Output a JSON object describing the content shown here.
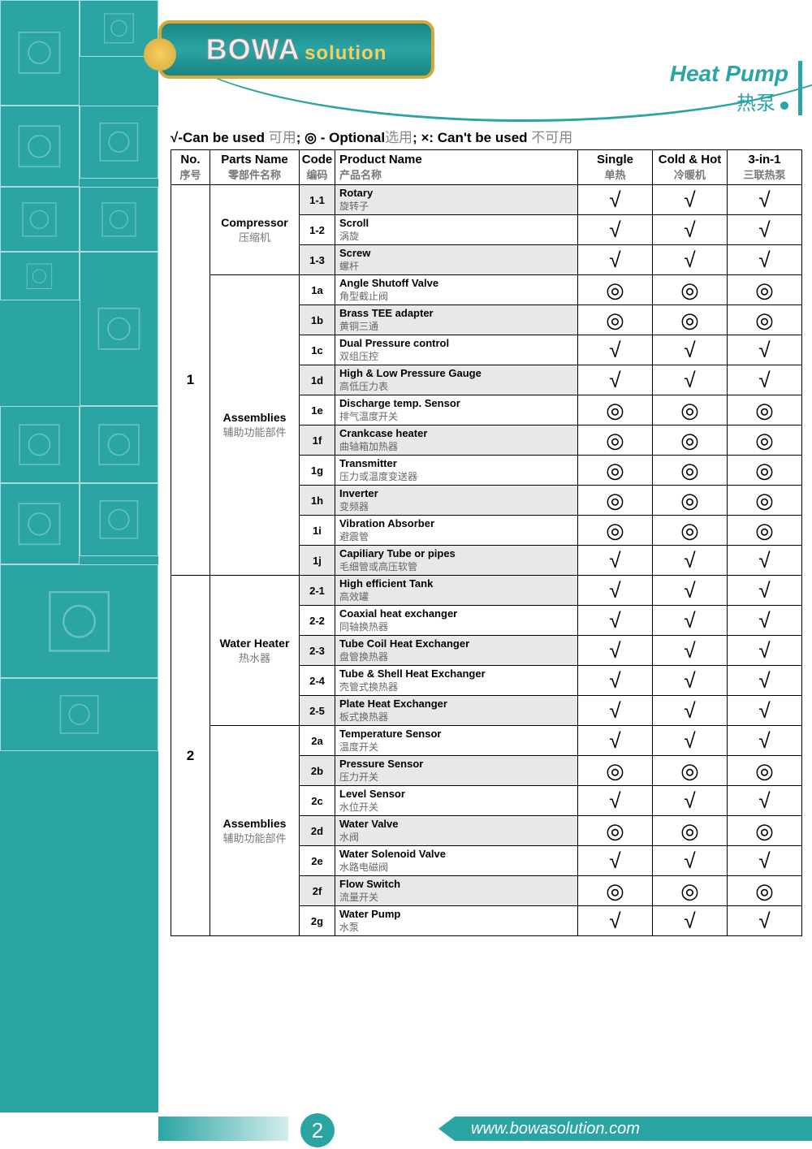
{
  "logo": {
    "main": "BOWA",
    "sub": "solution"
  },
  "page_title": {
    "en": "Heat Pump",
    "cn": "热泵"
  },
  "legend": {
    "t1": "√-Can be used ",
    "t1cn": "可用",
    "t2": "; ◎ - Optional",
    "t2cn": "选用",
    "t3": "; ×: Can't be used ",
    "t3cn": "不可用"
  },
  "headers": {
    "no": {
      "en": "No.",
      "cn": "序号"
    },
    "parts": {
      "en": "Parts Name",
      "cn": "零部件名称"
    },
    "code": {
      "en": "Code",
      "cn": "编码"
    },
    "product": {
      "en": "Product Name",
      "cn": "产品名称"
    },
    "single": {
      "en": "Single",
      "cn": "单热"
    },
    "cold": {
      "en": "Cold & Hot",
      "cn": "冷暖机"
    },
    "three": {
      "en": "3-in-1",
      "cn": "三联热泵"
    }
  },
  "groups": [
    {
      "no": "1",
      "sections": [
        {
          "name_en": "Compressor",
          "name_cn": "压缩机",
          "rows": [
            {
              "code": "1-1",
              "pn_en": "Rotary",
              "pn_cn": "旋转子",
              "m": [
                "√",
                "√",
                "√"
              ]
            },
            {
              "code": "1-2",
              "pn_en": "Scroll",
              "pn_cn": "涡旋",
              "m": [
                "√",
                "√",
                "√"
              ]
            },
            {
              "code": "1-3",
              "pn_en": "Screw",
              "pn_cn": "螺杆",
              "m": [
                "√",
                "√",
                "√"
              ]
            }
          ]
        },
        {
          "name_en": "Assemblies",
          "name_cn": "辅助功能部件",
          "rows": [
            {
              "code": "1a",
              "pn_en": "Angle Shutoff Valve",
              "pn_cn": "角型截止阀",
              "m": [
                "◎",
                "◎",
                "◎"
              ]
            },
            {
              "code": "1b",
              "pn_en": "Brass TEE adapter",
              "pn_cn": "黄铜三通",
              "m": [
                "◎",
                "◎",
                "◎"
              ]
            },
            {
              "code": "1c",
              "pn_en": "Dual Pressure control",
              "pn_cn": "双组压控",
              "m": [
                "√",
                "√",
                "√"
              ]
            },
            {
              "code": "1d",
              "pn_en": "High & Low Pressure Gauge",
              "pn_cn": "高低压力表",
              "m": [
                "√",
                "√",
                "√"
              ]
            },
            {
              "code": "1e",
              "pn_en": "Discharge temp. Sensor",
              "pn_cn": "排气温度开关",
              "m": [
                "◎",
                "◎",
                "◎"
              ]
            },
            {
              "code": "1f",
              "pn_en": "Crankcase heater",
              "pn_cn": "曲轴箱加热器",
              "m": [
                "◎",
                "◎",
                "◎"
              ]
            },
            {
              "code": "1g",
              "pn_en": "Transmitter",
              "pn_cn": "压力或温度变送器",
              "m": [
                "◎",
                "◎",
                "◎"
              ]
            },
            {
              "code": "1h",
              "pn_en": "Inverter",
              "pn_cn": "变频器",
              "m": [
                "◎",
                "◎",
                "◎"
              ]
            },
            {
              "code": "1i",
              "pn_en": "Vibration Absorber",
              "pn_cn": "避震管",
              "m": [
                "◎",
                "◎",
                "◎"
              ]
            },
            {
              "code": "1j",
              "pn_en": "Capiliary Tube or pipes",
              "pn_cn": "毛细管或高压软管",
              "m": [
                "√",
                "√",
                "√"
              ]
            }
          ]
        }
      ]
    },
    {
      "no": "2",
      "sections": [
        {
          "name_en": "Water Heater",
          "name_cn": "热水器",
          "rows": [
            {
              "code": "2-1",
              "pn_en": "High efficient Tank",
              "pn_cn": "高效罐",
              "m": [
                "√",
                "√",
                "√"
              ]
            },
            {
              "code": "2-2",
              "pn_en": "Coaxial heat exchanger",
              "pn_cn": "同轴换热器",
              "m": [
                "√",
                "√",
                "√"
              ]
            },
            {
              "code": "2-3",
              "pn_en": "Tube Coil Heat Exchanger",
              "pn_cn": "盘管换热器",
              "m": [
                "√",
                "√",
                "√"
              ]
            },
            {
              "code": "2-4",
              "pn_en": "Tube & Shell Heat Exchanger",
              "pn_cn": "壳管式换热器",
              "m": [
                "√",
                "√",
                "√"
              ]
            },
            {
              "code": "2-5",
              "pn_en": "Plate Heat Exchanger",
              "pn_cn": "板式换热器",
              "m": [
                "√",
                "√",
                "√"
              ]
            }
          ]
        },
        {
          "name_en": "Assemblies",
          "name_cn": "辅助功能部件",
          "rows": [
            {
              "code": "2a",
              "pn_en": "Temperature Sensor",
              "pn_cn": "温度开关",
              "m": [
                "√",
                "√",
                "√"
              ]
            },
            {
              "code": "2b",
              "pn_en": "Pressure Sensor",
              "pn_cn": "压力开关",
              "m": [
                "◎",
                "◎",
                "◎"
              ]
            },
            {
              "code": "2c",
              "pn_en": "Level Sensor",
              "pn_cn": "水位开关",
              "m": [
                "√",
                "√",
                "√"
              ]
            },
            {
              "code": "2d",
              "pn_en": "Water Valve",
              "pn_cn": "水阀",
              "m": [
                "◎",
                "◎",
                "◎"
              ]
            },
            {
              "code": "2e",
              "pn_en": "Water Solenoid Valve",
              "pn_cn": "水路电磁阀",
              "m": [
                "√",
                "√",
                "√"
              ]
            },
            {
              "code": "2f",
              "pn_en": "Flow Switch",
              "pn_cn": "流量开关",
              "m": [
                "◎",
                "◎",
                "◎"
              ]
            },
            {
              "code": "2g",
              "pn_en": "Water Pump",
              "pn_cn": "水泵",
              "m": [
                "√",
                "√",
                "√"
              ]
            }
          ]
        }
      ]
    }
  ],
  "footer": {
    "url": "www.bowasolution.com",
    "page": "2"
  },
  "sidebar_heights": [
    130,
    70,
    100,
    90,
    80,
    80,
    60,
    190,
    95,
    95,
    100,
    90,
    140,
    90
  ]
}
